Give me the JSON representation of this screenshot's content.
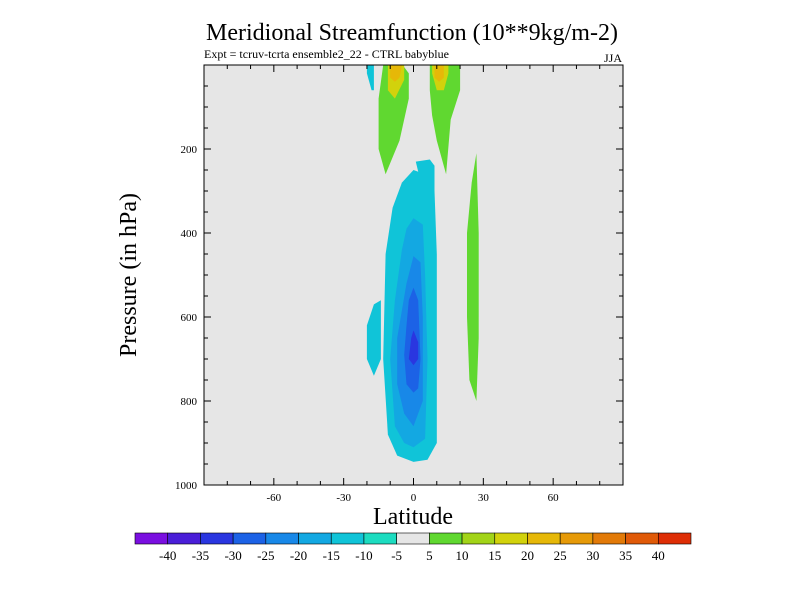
{
  "chart_data": {
    "type": "heatmap",
    "title": "Meridional Streamfunction (10**9kg/m-2)",
    "subtitle": "Expt = tcruv-tcrta  ensemble2_22 - CTRL babyblue",
    "season": "JJA",
    "xlabel": "Latitude",
    "ylabel": "Pressure (in hPa)",
    "xlim": [
      -90,
      90
    ],
    "ylim": [
      1000,
      0
    ],
    "y_inverted": true,
    "x_ticks": [
      -60,
      -30,
      0,
      30,
      60
    ],
    "y_ticks": [
      200,
      400,
      600,
      800,
      1000
    ],
    "background": "#e6e6e6",
    "levels": [
      {
        "range": [
          -45,
          -40
        ],
        "color": "#7a0fe0"
      },
      {
        "range": [
          -40,
          -35
        ],
        "color": "#4a1ed8"
      },
      {
        "range": [
          -35,
          -30
        ],
        "color": "#2a36e0"
      },
      {
        "range": [
          -30,
          -25
        ],
        "color": "#1c62e6"
      },
      {
        "range": [
          -25,
          -20
        ],
        "color": "#1888e8"
      },
      {
        "range": [
          -20,
          -15
        ],
        "color": "#13a8e2"
      },
      {
        "range": [
          -15,
          -10
        ],
        "color": "#10c4d8"
      },
      {
        "range": [
          -10,
          -5
        ],
        "color": "#1cdcc0"
      },
      {
        "range": [
          -5,
          5
        ],
        "color": "#e6e6e6"
      },
      {
        "range": [
          5,
          10
        ],
        "color": "#60d830"
      },
      {
        "range": [
          10,
          15
        ],
        "color": "#a2d418"
      },
      {
        "range": [
          15,
          20
        ],
        "color": "#d2d20c"
      },
      {
        "range": [
          20,
          25
        ],
        "color": "#e6b808"
      },
      {
        "range": [
          25,
          30
        ],
        "color": "#e69a08"
      },
      {
        "range": [
          30,
          35
        ],
        "color": "#e27a08"
      },
      {
        "range": [
          35,
          40
        ],
        "color": "#e05a08"
      },
      {
        "range": [
          40,
          45
        ],
        "color": "#de2e06"
      }
    ],
    "colorbar_labels": [
      "-40",
      "-35",
      "-30",
      "-25",
      "-20",
      "-15",
      "-10",
      "-5",
      "5",
      "10",
      "15",
      "20",
      "25",
      "30",
      "35",
      "40"
    ],
    "regions": [
      {
        "level": -10,
        "points": [
          [
            -20,
            20
          ],
          [
            -18,
            60
          ],
          [
            -17,
            60
          ],
          [
            -17,
            0
          ],
          [
            -20,
            0
          ]
        ]
      },
      {
        "level": 10,
        "points": [
          [
            -13,
            0
          ],
          [
            -8,
            0
          ],
          [
            -4,
            5
          ],
          [
            -2,
            20
          ],
          [
            -2,
            80
          ],
          [
            -6,
            180
          ],
          [
            -12,
            260
          ],
          [
            -15,
            200
          ],
          [
            -15,
            80
          ]
        ]
      },
      {
        "level": 20,
        "points": [
          [
            -11,
            0
          ],
          [
            -4,
            0
          ],
          [
            -4,
            35
          ],
          [
            -8,
            80
          ],
          [
            -11,
            60
          ],
          [
            -11,
            20
          ]
        ]
      },
      {
        "level": 25,
        "points": [
          [
            -10,
            0
          ],
          [
            -5,
            0
          ],
          [
            -6,
            30
          ],
          [
            -8,
            40
          ],
          [
            -10,
            30
          ]
        ]
      },
      {
        "level": 10,
        "points": [
          [
            7,
            0
          ],
          [
            20,
            0
          ],
          [
            20,
            60
          ],
          [
            16,
            130
          ],
          [
            14,
            260
          ],
          [
            10,
            180
          ],
          [
            8,
            120
          ],
          [
            7,
            60
          ]
        ]
      },
      {
        "level": 20,
        "points": [
          [
            8,
            0
          ],
          [
            15,
            0
          ],
          [
            15,
            20
          ],
          [
            13,
            60
          ],
          [
            10,
            60
          ],
          [
            8,
            20
          ]
        ]
      },
      {
        "level": 25,
        "points": [
          [
            9,
            0
          ],
          [
            13,
            0
          ],
          [
            13,
            30
          ],
          [
            11,
            40
          ],
          [
            9,
            30
          ]
        ]
      },
      {
        "level": 10,
        "points": [
          [
            24,
            750
          ],
          [
            23,
            600
          ],
          [
            23,
            400
          ],
          [
            25,
            280
          ],
          [
            27,
            210
          ],
          [
            28,
            400
          ],
          [
            28,
            650
          ],
          [
            27,
            800
          ]
        ]
      },
      {
        "level": -10,
        "points": [
          [
            -20,
            700
          ],
          [
            -20,
            620
          ],
          [
            -17,
            570
          ],
          [
            -14,
            560
          ],
          [
            -14,
            700
          ],
          [
            -17,
            740
          ]
        ]
      },
      {
        "level": -10,
        "points": [
          [
            -5,
            280
          ],
          [
            0,
            250
          ],
          [
            5,
            260
          ],
          [
            9,
            300
          ],
          [
            10,
            450
          ],
          [
            10,
            900
          ],
          [
            6,
            940
          ],
          [
            0,
            945
          ],
          [
            -7,
            930
          ],
          [
            -11,
            880
          ],
          [
            -13,
            700
          ],
          [
            -12,
            450
          ],
          [
            -9,
            340
          ]
        ]
      },
      {
        "level": -15,
        "points": [
          [
            -5,
            440
          ],
          [
            -3,
            390
          ],
          [
            0,
            365
          ],
          [
            4,
            380
          ],
          [
            5,
            500
          ],
          [
            6,
            700
          ],
          [
            5,
            890
          ],
          [
            0,
            910
          ],
          [
            -4,
            900
          ],
          [
            -8,
            860
          ],
          [
            -10,
            700
          ],
          [
            -8,
            560
          ]
        ]
      },
      {
        "level": -20,
        "points": [
          [
            -3,
            520
          ],
          [
            0,
            455
          ],
          [
            3,
            470
          ],
          [
            4,
            600
          ],
          [
            4,
            800
          ],
          [
            0,
            860
          ],
          [
            -4,
            830
          ],
          [
            -7,
            760
          ],
          [
            -7,
            650
          ]
        ]
      },
      {
        "level": -25,
        "points": [
          [
            -2,
            560
          ],
          [
            0,
            530
          ],
          [
            2,
            560
          ],
          [
            3,
            700
          ],
          [
            2,
            770
          ],
          [
            0,
            780
          ],
          [
            -3,
            760
          ],
          [
            -4,
            690
          ],
          [
            -3,
            620
          ]
        ]
      },
      {
        "level": -30,
        "points": [
          [
            -1,
            650
          ],
          [
            0,
            632
          ],
          [
            2,
            660
          ],
          [
            2,
            700
          ],
          [
            0,
            715
          ],
          [
            -2,
            700
          ]
        ]
      },
      {
        "level": -10,
        "points": [
          [
            1,
            230
          ],
          [
            7,
            225
          ],
          [
            9,
            240
          ],
          [
            9,
            300
          ],
          [
            7,
            320
          ],
          [
            4,
            300
          ]
        ]
      }
    ]
  }
}
